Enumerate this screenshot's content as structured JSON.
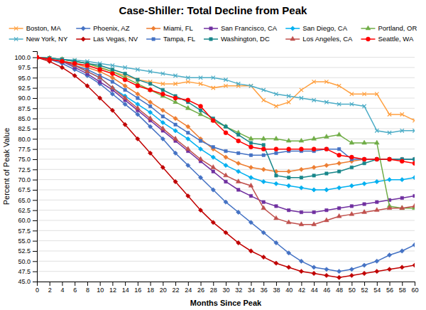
{
  "chart_data": {
    "type": "line",
    "title": "Case-Shiller: Total Decline from Peak",
    "x_label": "Months Since Peak",
    "y_label": "Percent of Peak Value",
    "x": [
      0,
      2,
      4,
      6,
      8,
      10,
      12,
      14,
      16,
      18,
      20,
      22,
      24,
      26,
      28,
      30,
      32,
      34,
      36,
      38,
      40,
      42,
      44,
      46,
      48,
      50,
      52,
      54,
      56,
      58,
      60
    ],
    "xlim": [
      0,
      60
    ],
    "ylim": [
      45.0,
      101.5
    ],
    "xticks": [
      0,
      2,
      4,
      6,
      8,
      10,
      12,
      14,
      16,
      18,
      20,
      22,
      24,
      26,
      28,
      30,
      32,
      34,
      36,
      38,
      40,
      42,
      44,
      46,
      48,
      50,
      52,
      54,
      56,
      58,
      60
    ],
    "yticks": [
      {
        "value": 45,
        "label": "45.0"
      },
      47.5,
      {
        "value": 50,
        "label": "50.0"
      },
      52.5,
      {
        "value": 55,
        "label": "55.0"
      },
      57.5,
      {
        "value": 60,
        "label": "60.0"
      },
      62.5,
      {
        "value": 65,
        "label": "65.0"
      },
      67.5,
      {
        "value": 70,
        "label": "70.0"
      },
      72.5,
      {
        "value": 75,
        "label": "75.0"
      },
      77.5,
      {
        "value": 80,
        "label": "80.0"
      },
      82.5,
      {
        "value": 85,
        "label": "85.0"
      },
      87.5,
      {
        "value": 90,
        "label": "90.0"
      },
      92.5,
      {
        "value": 95,
        "label": "95.0"
      },
      97.5,
      {
        "value": 100,
        "label": "100.0"
      }
    ],
    "grid": "y",
    "legend": "top",
    "series": [
      {
        "name": "Boston, MA",
        "color": "#FFA040",
        "marker": "x",
        "line_style": "solid",
        "values": [
          100,
          99.8,
          99.5,
          99,
          98.5,
          97.5,
          96.5,
          95.5,
          94.5,
          94,
          93.5,
          93.5,
          94,
          93.5,
          92.5,
          93,
          93,
          93,
          89.5,
          88,
          89,
          92,
          94,
          94,
          93,
          91,
          91,
          91,
          86,
          86,
          84.5
        ]
      },
      {
        "name": "Phoenix, AZ",
        "color": "#4472C4",
        "marker": "diamond",
        "line_style": "solid",
        "values": [
          100,
          99.5,
          98.5,
          97,
          95.5,
          93.5,
          91,
          88.5,
          86,
          83,
          80,
          76.5,
          73.5,
          70.5,
          67.5,
          64.5,
          62,
          59.5,
          57,
          54.5,
          52,
          50,
          48.5,
          48,
          47.5,
          48,
          49,
          50,
          51.5,
          52.5,
          54
        ]
      },
      {
        "name": "Miami, FL",
        "color": "#ED7D31",
        "marker": "diamond",
        "line_style": "solid",
        "values": [
          100,
          99.5,
          99,
          98.5,
          97.5,
          96.5,
          95,
          93,
          91,
          89,
          87,
          85,
          83,
          80,
          77.5,
          75.5,
          74,
          73,
          72.5,
          72,
          72,
          72.5,
          73,
          73.5,
          74,
          74.5,
          75,
          75,
          75,
          75,
          75
        ]
      },
      {
        "name": "San Francisco, CA",
        "color": "#7030A0",
        "marker": "square",
        "line_style": "solid",
        "values": [
          100,
          99.5,
          99,
          97.5,
          96,
          94,
          92,
          89.5,
          87,
          84.5,
          82,
          79.5,
          77,
          74.5,
          72,
          69.5,
          67.5,
          66,
          64.5,
          63.5,
          62.5,
          62,
          62,
          62.5,
          63,
          63.5,
          64,
          64.5,
          65,
          65.5,
          66
        ]
      },
      {
        "name": "San Diego, CA",
        "color": "#00B0F0",
        "marker": "diamond",
        "line_style": "solid",
        "values": [
          100,
          99.5,
          99,
          98,
          96.5,
          95,
          92.5,
          90.5,
          88.5,
          86.5,
          84,
          82,
          80,
          77.5,
          75.5,
          73.5,
          72,
          70.5,
          69.5,
          69,
          68.5,
          68,
          67.5,
          67.5,
          68,
          68.5,
          69,
          69.5,
          70,
          70,
          70.5
        ]
      },
      {
        "name": "Portland, OR",
        "color": "#70AD47",
        "marker": "triangle",
        "line_style": "solid",
        "values": [
          100,
          99.8,
          99.5,
          99,
          98.5,
          97.5,
          96.5,
          95,
          93.5,
          92,
          90.5,
          89,
          87.5,
          86,
          84.5,
          83,
          81.5,
          80,
          80,
          80,
          79.5,
          79.5,
          80,
          80.5,
          81,
          79,
          79,
          79,
          63.5,
          63,
          63
        ]
      },
      {
        "name": "New York, NY",
        "color": "#4BACC6",
        "marker": "x",
        "line_style": "solid",
        "values": [
          100,
          99.8,
          99.5,
          99.3,
          99,
          98.5,
          98,
          97.5,
          97,
          96.5,
          96,
          95.5,
          95,
          95,
          95,
          94.5,
          93.5,
          93,
          92,
          91,
          90.5,
          90,
          89.5,
          89,
          88.5,
          88.5,
          88,
          82,
          81.5,
          82,
          82
        ]
      },
      {
        "name": "Las Vegas, NV",
        "color": "#C00000",
        "marker": "diamond",
        "line_style": "solid",
        "values": [
          100,
          99,
          97.5,
          95.5,
          93,
          90,
          87,
          83.5,
          80,
          76.5,
          73,
          69.5,
          66,
          62.5,
          59.5,
          57,
          54.5,
          52.5,
          51,
          49.5,
          48.5,
          47.5,
          47,
          46.5,
          46,
          46.5,
          47,
          47.5,
          48,
          48.5,
          49
        ]
      },
      {
        "name": "Tampa, FL",
        "color": "#4472C4",
        "marker": "square",
        "line_style": "solid",
        "values": [
          100,
          99.5,
          99,
          98,
          97,
          95.5,
          94,
          92,
          90,
          88,
          85.5,
          83.5,
          81.5,
          79.5,
          78,
          77,
          76.5,
          76,
          76,
          76.5,
          77,
          77,
          77,
          77.5,
          77.5,
          75,
          75,
          75,
          75,
          75,
          75
        ]
      },
      {
        "name": "Washington, DC",
        "color": "#17868A",
        "marker": "square",
        "line_style": "solid",
        "values": [
          100,
          99.8,
          99.5,
          99,
          98.5,
          98,
          97,
          96,
          94.5,
          93.5,
          92,
          90.5,
          89,
          87,
          85,
          83,
          81,
          79,
          78.5,
          71,
          70.5,
          70.5,
          71,
          71.5,
          72,
          73,
          74,
          75,
          75,
          75,
          75
        ]
      },
      {
        "name": "Los Angeles, CA",
        "color": "#C0504D",
        "marker": "triangle",
        "line_style": "solid",
        "values": [
          100,
          99.5,
          99,
          98,
          96.5,
          95,
          92.5,
          90,
          87.5,
          85,
          82.5,
          80,
          77.5,
          75,
          73,
          71,
          69.5,
          68.5,
          63,
          60.5,
          59.5,
          59,
          59,
          60,
          61,
          61.5,
          62,
          62.5,
          63,
          63,
          63.5
        ]
      },
      {
        "name": "Seattle, WA",
        "color": "#FF0000",
        "marker": "circle",
        "line_style": "solid",
        "values": [
          100,
          99.5,
          99,
          98.5,
          98,
          97,
          96,
          94.5,
          93,
          92,
          91,
          90,
          89.5,
          88,
          84.5,
          81.5,
          79.5,
          78,
          77.5,
          77.5,
          77.5,
          77.5,
          77.5,
          77.5,
          76,
          75.5,
          75,
          75,
          75,
          74.5,
          74
        ]
      }
    ]
  }
}
